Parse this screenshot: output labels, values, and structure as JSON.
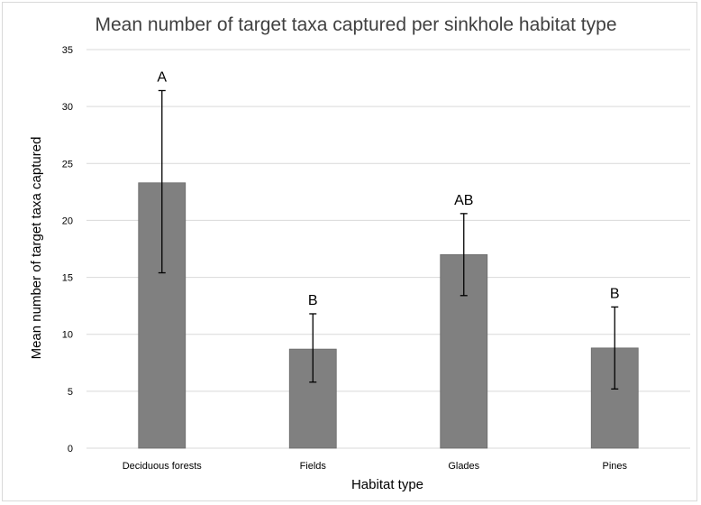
{
  "chart_data": {
    "type": "bar",
    "title": "Mean number of target taxa captured per sinkhole habitat type",
    "xlabel": "Habitat type",
    "ylabel": "Mean number of target taxa captured",
    "categories": [
      "Deciduous forests",
      "Fields",
      "Glades",
      "Pines"
    ],
    "values": [
      23.3,
      8.7,
      17.0,
      8.8
    ],
    "error_high": [
      31.4,
      11.8,
      20.6,
      12.4
    ],
    "error_low": [
      15.4,
      5.8,
      13.4,
      5.2
    ],
    "significance_labels": [
      "A",
      "B",
      "AB",
      "B"
    ],
    "ylim": [
      0,
      35
    ],
    "yticks": [
      0,
      5,
      10,
      15,
      20,
      25,
      30,
      35
    ],
    "grid": true,
    "legend": "none",
    "colors": {
      "bar": "#808080",
      "bar_border": "#6a6a6a",
      "gridline": "#d9d9d9",
      "error_bar": "#000000"
    }
  }
}
